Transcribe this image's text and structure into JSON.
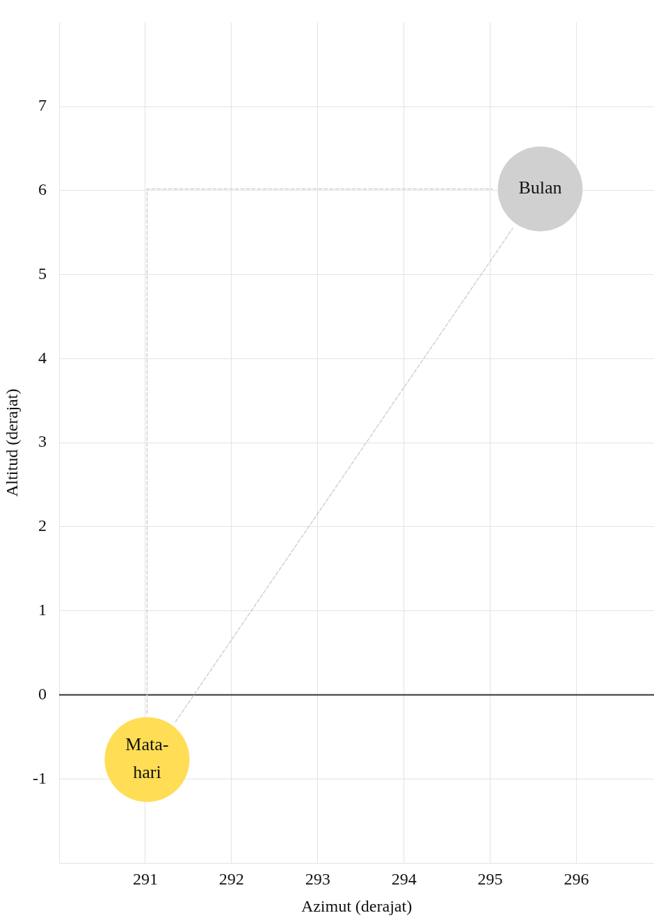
{
  "chart_data": {
    "type": "bubble",
    "xlabel": "Azimut (derajat)",
    "ylabel": "Altitud (derajat)",
    "xlim": [
      290,
      296.9
    ],
    "xticks": [
      291,
      292,
      293,
      294,
      295,
      296
    ],
    "ylim": [
      -2,
      8
    ],
    "yticks": [
      -1,
      0,
      1,
      2,
      3,
      4,
      5,
      6,
      7
    ],
    "grid": true,
    "legend": false,
    "ref_lines": [
      {
        "axis": "y",
        "value": 0,
        "color": "#333333"
      }
    ],
    "series": [
      {
        "type": "line",
        "color": "#d0d0d0",
        "line_style": "dashed",
        "x": [
          291.02,
          291.02,
          295.03
        ],
        "values": [
          -0.22,
          6.02,
          6.02
        ]
      },
      {
        "type": "line",
        "color": "#d0d0d0",
        "line_style": "dashed",
        "x": [
          291.35,
          295.26
        ],
        "values": [
          -0.32,
          5.55
        ]
      },
      {
        "name": "Mata-\nhari",
        "color": "#ffdd55",
        "x": [
          291.02
        ],
        "values": [
          -0.77
        ],
        "sizes": [
          1
        ]
      },
      {
        "name": "Bulan",
        "color": "#d0d0d0",
        "x": [
          295.58
        ],
        "values": [
          6.02
        ],
        "sizes": [
          1
        ]
      }
    ]
  }
}
